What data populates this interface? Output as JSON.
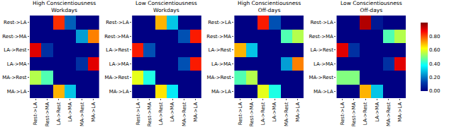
{
  "chart_data": [
    {
      "type": "heatmap",
      "title": "High Conscientiousness\nWorkdays",
      "x": [
        "Rest->LA",
        "Rest->MA",
        "LA->Rest",
        "LA->MA",
        "MA->Rest",
        "MA->LA"
      ],
      "y": [
        "Rest->LA",
        "Rest->MA",
        "LA->Rest",
        "LA->MA",
        "MA->Rest",
        "MA->LA"
      ],
      "z": [
        [
          0,
          0,
          0.83,
          0.17,
          0,
          0
        ],
        [
          0,
          0,
          0,
          0,
          0.25,
          0.75
        ],
        [
          0.9,
          0.1,
          0,
          0,
          0,
          0
        ],
        [
          0,
          0,
          0,
          0,
          0.1,
          0.9
        ],
        [
          0.55,
          0.45,
          0,
          0,
          0,
          0
        ],
        [
          0,
          0,
          0.7,
          0.3,
          0,
          0
        ]
      ],
      "zlim": [
        0,
        1
      ]
    },
    {
      "type": "heatmap",
      "title": "Low Conscientiousness\nWorkdays",
      "x": [
        "Rest->LA",
        "Rest->MA",
        "LA->Rest",
        "LA->MA",
        "MA->Rest",
        "MA->LA"
      ],
      "y": [
        "Rest->LA",
        "Rest->MA",
        "LA->Rest",
        "LA->MA",
        "MA->Rest",
        "MA->LA"
      ],
      "z": [
        [
          0,
          0,
          0.7,
          0.3,
          0,
          0
        ],
        [
          0,
          0,
          0,
          0,
          0.15,
          0.85
        ],
        [
          0.85,
          0.15,
          0,
          0,
          0,
          0
        ],
        [
          0,
          0,
          0,
          0,
          0.15,
          0.85
        ],
        [
          0.6,
          0.4,
          0,
          0,
          0,
          0
        ],
        [
          0,
          0,
          0.65,
          0.35,
          0,
          0
        ]
      ],
      "zlim": [
        0,
        1
      ]
    },
    {
      "type": "heatmap",
      "title": "High Conscientiousness\nOff-days",
      "x": [
        "Rest->LA",
        "Rest->MA",
        "LA->Rest",
        "LA->MA",
        "MA->Rest",
        "MA->LA"
      ],
      "y": [
        "Rest->LA",
        "Rest->MA",
        "LA->Rest",
        "LA->MA",
        "MA->Rest",
        "MA->LA"
      ],
      "z": [
        [
          0,
          0,
          0.85,
          0.15,
          0,
          0
        ],
        [
          0,
          0,
          0,
          0,
          0.45,
          0.55
        ],
        [
          0.7,
          0.3,
          0,
          0,
          0,
          0
        ],
        [
          0,
          0,
          0,
          0,
          0.25,
          0.75
        ],
        [
          0.45,
          0.55,
          0,
          0,
          0,
          0
        ],
        [
          0,
          0,
          0.6,
          0.4,
          0,
          0
        ]
      ],
      "zlim": [
        0,
        1
      ]
    },
    {
      "type": "heatmap",
      "title": "Low Conscientiousness\nOff-days",
      "x": [
        "Rest->LA",
        "Rest->MA",
        "LA->Rest",
        "LA->MA",
        "MA->Rest",
        "MA->LA"
      ],
      "y": [
        "Rest->LA",
        "Rest->MA",
        "LA->Rest",
        "LA->MA",
        "MA->Rest",
        "MA->LA"
      ],
      "z": [
        [
          0,
          0,
          0.95,
          0.05,
          0,
          0
        ],
        [
          0,
          0,
          0,
          0,
          0.45,
          0.55
        ],
        [
          0.9,
          0.1,
          0,
          0,
          0,
          0
        ],
        [
          0,
          0,
          0,
          0,
          0.1,
          0.9
        ],
        [
          0.5,
          0.5,
          0,
          0,
          0,
          0
        ],
        [
          0,
          0,
          0.7,
          0.3,
          0,
          0
        ]
      ],
      "zlim": [
        0,
        1
      ],
      "zticks": [
        {
          "value": 0,
          "label": "0.00"
        },
        {
          "value": 0.2,
          "label": "0.20"
        },
        {
          "value": 0.4,
          "label": "0.40"
        },
        {
          "value": 0.6,
          "label": "0.60"
        },
        {
          "value": 0.8,
          "label": "0.80"
        }
      ]
    }
  ]
}
